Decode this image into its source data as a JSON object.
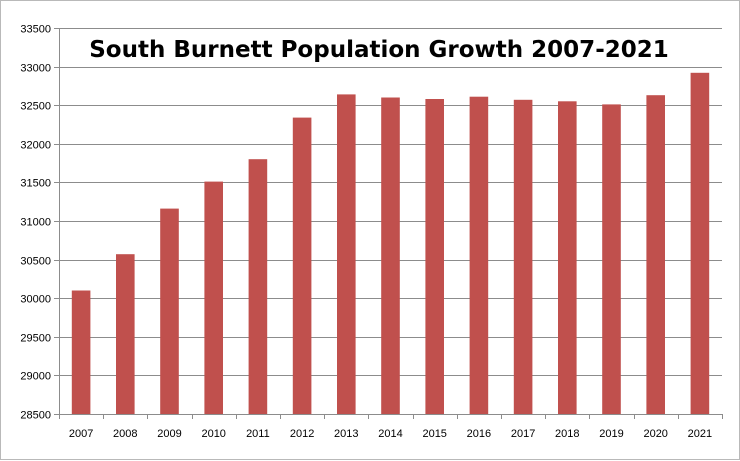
{
  "chart_data": {
    "type": "bar",
    "title": "South Burnett Population Growth 2007-2021",
    "xlabel": "",
    "ylabel": "",
    "categories": [
      "2007",
      "2008",
      "2009",
      "2010",
      "2011",
      "2012",
      "2013",
      "2014",
      "2015",
      "2016",
      "2017",
      "2018",
      "2019",
      "2020",
      "2021"
    ],
    "values": [
      30100,
      30570,
      31160,
      31510,
      31800,
      32340,
      32640,
      32600,
      32580,
      32610,
      32570,
      32550,
      32510,
      32630,
      32920
    ],
    "ylim": [
      28500,
      33500
    ],
    "yticks": [
      28500,
      29000,
      29500,
      30000,
      30500,
      31000,
      31500,
      32000,
      32500,
      33000,
      33500
    ],
    "grid": true,
    "legend": "none",
    "bar_color": "#c0504d",
    "grid_color": "#8c8c8c",
    "axis_color": "#8c8c8c"
  }
}
